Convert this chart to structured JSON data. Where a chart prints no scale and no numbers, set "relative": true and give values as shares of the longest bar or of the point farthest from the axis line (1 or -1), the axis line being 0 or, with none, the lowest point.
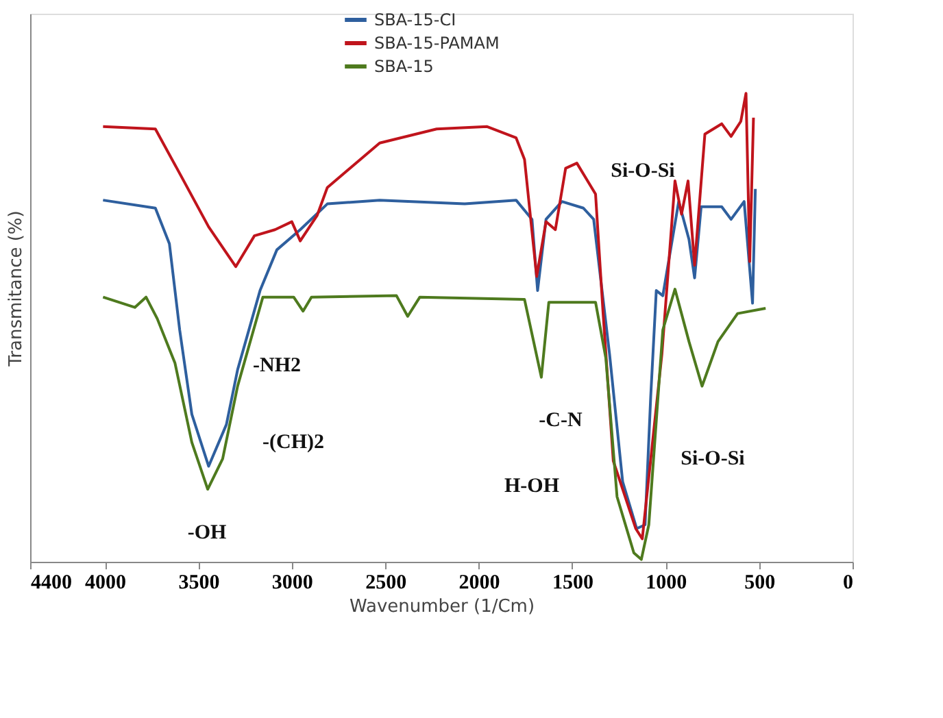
{
  "chart_data": {
    "type": "line",
    "relative": true,
    "xlabel": "Wavenumber (1/Cm)",
    "ylabel": "Transmitance (%)",
    "xlim": [
      4400,
      0
    ],
    "xticks": [
      4400,
      4000,
      3500,
      3000,
      2500,
      2000,
      1500,
      1000,
      500,
      0
    ],
    "grid": false,
    "legend": "top",
    "marker": "none",
    "line_style": "solid",
    "series": [
      {
        "name": "SBA-15-CI",
        "color": "#2e5f9e",
        "x": [
          4010,
          3730,
          3655,
          3600,
          3535,
          3445,
          3350,
          3290,
          3170,
          3080,
          2955,
          2810,
          2530,
          2075,
          1800,
          1715,
          1685,
          1640,
          1555,
          1440,
          1385,
          1300,
          1230,
          1155,
          1110,
          1080,
          1050,
          1015,
          930,
          875,
          845,
          810,
          700,
          650,
          580,
          535,
          520
        ],
        "values": [
          0.772,
          0.755,
          0.679,
          0.495,
          0.315,
          0.204,
          0.293,
          0.41,
          0.579,
          0.666,
          0.709,
          0.764,
          0.772,
          0.764,
          0.772,
          0.731,
          0.579,
          0.731,
          0.769,
          0.755,
          0.731,
          0.443,
          0.171,
          0.071,
          0.079,
          0.351,
          0.579,
          0.568,
          0.769,
          0.688,
          0.606,
          0.758,
          0.758,
          0.731,
          0.769,
          0.552,
          0.796
        ]
      },
      {
        "name": "SBA-15-PAMAM",
        "color": "#c0141c",
        "x": [
          4010,
          3730,
          3600,
          3445,
          3300,
          3200,
          3090,
          3000,
          2955,
          2865,
          2810,
          2530,
          2225,
          1955,
          1800,
          1755,
          1690,
          1640,
          1590,
          1535,
          1475,
          1375,
          1335,
          1280,
          1160,
          1125,
          1020,
          950,
          915,
          880,
          845,
          790,
          700,
          650,
          598,
          570,
          550,
          530
        ],
        "values": [
          0.929,
          0.924,
          0.829,
          0.715,
          0.63,
          0.696,
          0.709,
          0.726,
          0.685,
          0.739,
          0.799,
          0.894,
          0.924,
          0.929,
          0.905,
          0.859,
          0.609,
          0.726,
          0.709,
          0.84,
          0.851,
          0.785,
          0.533,
          0.215,
          0.071,
          0.049,
          0.443,
          0.813,
          0.742,
          0.813,
          0.633,
          0.913,
          0.935,
          0.908,
          0.94,
          1.0,
          0.641,
          0.948
        ]
      },
      {
        "name": "SBA-15",
        "color": "#4e7a1e",
        "x": [
          4010,
          3840,
          3780,
          3720,
          3625,
          3535,
          3450,
          3370,
          3290,
          3155,
          2990,
          2940,
          2895,
          2440,
          2380,
          2315,
          1755,
          1665,
          1625,
          1375,
          1320,
          1260,
          1170,
          1130,
          1090,
          1015,
          950,
          875,
          805,
          720,
          615,
          465
        ],
        "values": [
          0.565,
          0.543,
          0.565,
          0.519,
          0.424,
          0.255,
          0.155,
          0.22,
          0.375,
          0.565,
          0.565,
          0.535,
          0.565,
          0.568,
          0.524,
          0.565,
          0.56,
          0.394,
          0.554,
          0.554,
          0.435,
          0.139,
          0.019,
          0.005,
          0.079,
          0.495,
          0.582,
          0.47,
          0.375,
          0.47,
          0.53,
          0.541
        ]
      }
    ],
    "annotations": [
      "-OH",
      "-NH2",
      "-(CH)2",
      "H-OH",
      "-C-N",
      "Si-O-Si",
      "Si-O-Si"
    ]
  }
}
